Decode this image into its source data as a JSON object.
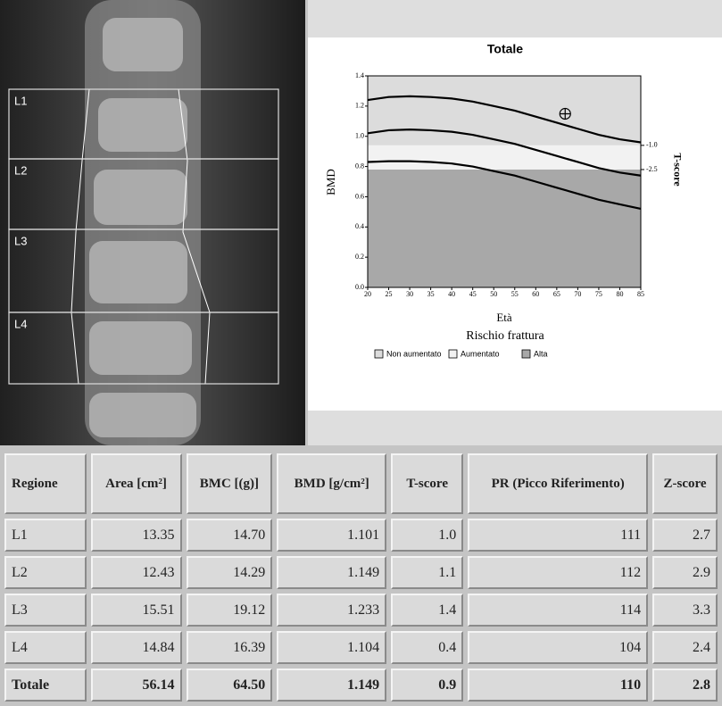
{
  "image": {
    "labels": [
      "L1",
      "L2",
      "L3",
      "L4"
    ]
  },
  "chart_data": {
    "type": "line",
    "title": "Totale",
    "x_label": "Età",
    "y_label": "BMD",
    "y2_label": "T-score",
    "legend_title": "Rischio frattura",
    "x": [
      20,
      25,
      30,
      35,
      40,
      45,
      50,
      55,
      60,
      65,
      70,
      75,
      80,
      85
    ],
    "xlim": [
      20,
      85
    ],
    "xticks": [
      20,
      25,
      30,
      35,
      40,
      45,
      50,
      55,
      60,
      65,
      70,
      75,
      80,
      85
    ],
    "ylim": [
      0,
      1.4
    ],
    "yticks": [
      {
        "value": 0,
        "label": "0.0"
      },
      0.2,
      0.4,
      0.6,
      0.8,
      {
        "value": 1,
        "label": "1.0"
      },
      1.2,
      1.4
    ],
    "y2lim": [
      -9.81,
      3.31
    ],
    "y2ticks": [
      {
        "value": -1,
        "label": "-1.0"
      },
      -2.5
    ],
    "bands": [
      {
        "name": "Non aumentato",
        "color": "#dcdcdc",
        "range": [
          0.94,
          1.4
        ]
      },
      {
        "name": "Aumentato",
        "color": "#f2f2f2",
        "range": [
          0.78,
          0.94
        ]
      },
      {
        "name": "Alta",
        "color": "#a8a8a8",
        "range": [
          0,
          0.78
        ]
      }
    ],
    "curves": [
      {
        "color": "#000000",
        "values": [
          1.24,
          1.26,
          1.265,
          1.26,
          1.25,
          1.23,
          1.2,
          1.17,
          1.13,
          1.09,
          1.05,
          1.01,
          0.98,
          0.96
        ]
      },
      {
        "color": "#000000",
        "values": [
          1.02,
          1.04,
          1.045,
          1.04,
          1.03,
          1.01,
          0.98,
          0.95,
          0.91,
          0.87,
          0.83,
          0.79,
          0.76,
          0.74
        ]
      },
      {
        "color": "#000000",
        "values": [
          0.83,
          0.835,
          0.835,
          0.83,
          0.82,
          0.8,
          0.77,
          0.74,
          0.7,
          0.66,
          0.62,
          0.58,
          0.55,
          0.52
        ]
      }
    ],
    "point": {
      "x": 67,
      "y": 1.149
    }
  },
  "table": {
    "header": [
      "Regione",
      "Area [cm²]",
      "BMC [(g)]",
      "BMD [g/cm²]",
      "T-score",
      "PR (Picco Riferimento)",
      "Z-score"
    ],
    "rows": [
      [
        "L1",
        "13.35",
        "14.70",
        "1.101",
        "1.0",
        "111",
        "2.7"
      ],
      [
        "L2",
        "12.43",
        "14.29",
        "1.149",
        "1.1",
        "112",
        "2.9"
      ],
      [
        "L3",
        "15.51",
        "19.12",
        "1.233",
        "1.4",
        "114",
        "3.3"
      ],
      [
        "L4",
        "14.84",
        "16.39",
        "1.104",
        "0.4",
        "104",
        "2.4"
      ],
      [
        "Totale",
        "56.14",
        "64.50",
        "1.149",
        "0.9",
        "110",
        "2.8"
      ]
    ]
  }
}
